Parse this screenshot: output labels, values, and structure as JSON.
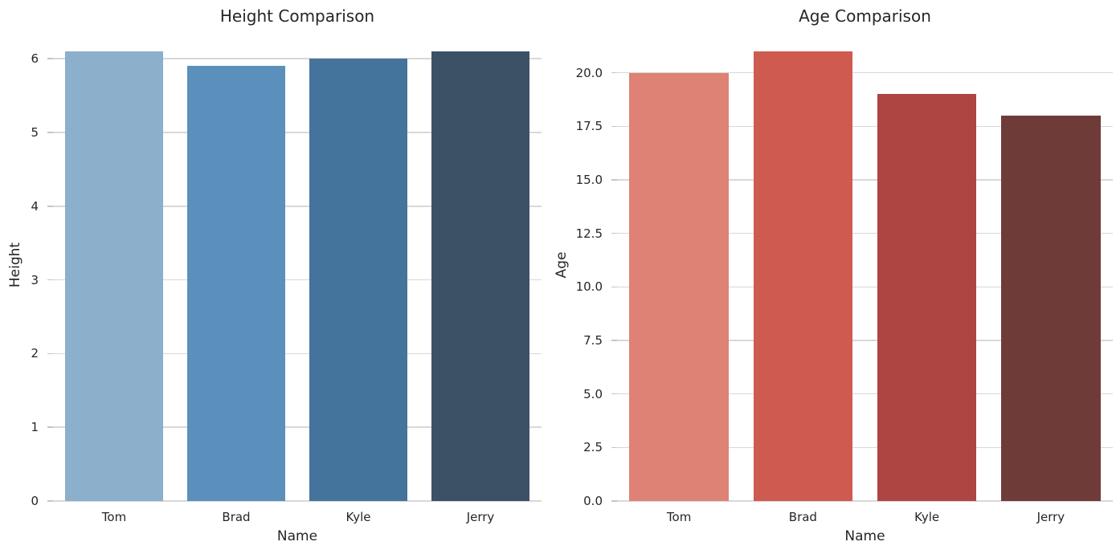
{
  "figure": {
    "background": "#FFFFFF",
    "text_color": "#262626",
    "grid_color": "#D8D8D8"
  },
  "chart_data": [
    {
      "type": "bar",
      "title": "Height Comparison",
      "xlabel": "Name",
      "ylabel": "Height",
      "categories": [
        "Tom",
        "Brad",
        "Kyle",
        "Jerry"
      ],
      "values": [
        6.1,
        5.9,
        6.0,
        6.1
      ],
      "ylim": [
        0,
        6.405
      ],
      "yticks": [
        0,
        1,
        2,
        3,
        4,
        5,
        6
      ],
      "ytick_labels": [
        "0",
        "1",
        "2",
        "3",
        "4",
        "5",
        "6"
      ],
      "bar_colors": [
        "#8CAFCB",
        "#5A90BB",
        "#44749B",
        "#3C5166"
      ],
      "grid": true,
      "legend": "none"
    },
    {
      "type": "bar",
      "title": "Age Comparison",
      "xlabel": "Name",
      "ylabel": "Age",
      "categories": [
        "Tom",
        "Brad",
        "Kyle",
        "Jerry"
      ],
      "values": [
        20,
        21,
        19,
        18
      ],
      "ylim": [
        0,
        22.05
      ],
      "yticks": [
        0,
        2.5,
        5,
        7.5,
        10,
        12.5,
        15,
        17.5,
        20
      ],
      "ytick_labels": [
        "0.0",
        "2.5",
        "5.0",
        "7.5",
        "10.0",
        "12.5",
        "15.0",
        "17.5",
        "20.0"
      ],
      "bar_colors": [
        "#DD8274",
        "#CE5A50",
        "#AE4542",
        "#6F3B39"
      ],
      "grid": true,
      "legend": "none"
    }
  ]
}
